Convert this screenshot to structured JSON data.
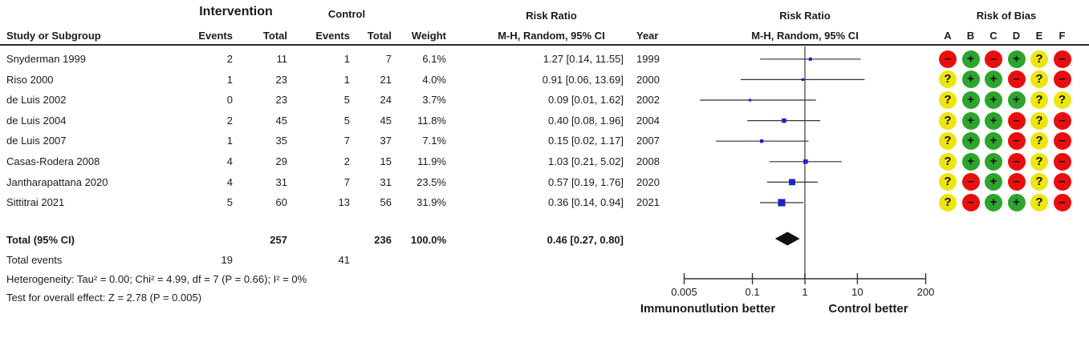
{
  "header": {
    "group_intervention": "Intervention",
    "group_control": "Control",
    "col_study": "Study or Subgroup",
    "col_events": "Events",
    "col_total": "Total",
    "col_weight": "Weight",
    "rr_title": "Risk Ratio",
    "rr_subtitle": "M-H, Random, 95% CI",
    "col_year": "Year",
    "plot_title": "Risk Ratio",
    "plot_subtitle": "M-H, Random, 95% CI",
    "rob_title": "Risk of Bias",
    "rob_letters": [
      "A",
      "B",
      "C",
      "D",
      "E",
      "F"
    ]
  },
  "studies": [
    {
      "name": "Snyderman 1999",
      "events1": "2",
      "total1": "11",
      "events2": "1",
      "total2": "7",
      "weight": 6.1,
      "weight_text": "6.1%",
      "rr": 1.27,
      "lo": 0.14,
      "hi": 11.55,
      "ci_text": "1.27 [0.14, 11.55]",
      "year": "1999",
      "rob": [
        "-",
        "+",
        "-",
        "+",
        "?",
        "-"
      ]
    },
    {
      "name": "Riso 2000",
      "events1": "1",
      "total1": "23",
      "events2": "1",
      "total2": "21",
      "weight": 4.0,
      "weight_text": "4.0%",
      "rr": 0.91,
      "lo": 0.06,
      "hi": 13.69,
      "ci_text": "0.91 [0.06, 13.69]",
      "year": "2000",
      "rob": [
        "?",
        "+",
        "+",
        "-",
        "?",
        "-"
      ]
    },
    {
      "name": "de Luis 2002",
      "events1": "0",
      "total1": "23",
      "events2": "5",
      "total2": "24",
      "weight": 3.7,
      "weight_text": "3.7%",
      "rr": 0.09,
      "lo": 0.01,
      "hi": 1.62,
      "ci_text": "0.09 [0.01, 1.62]",
      "year": "2002",
      "rob": [
        "?",
        "+",
        "+",
        "+",
        "?",
        "?"
      ]
    },
    {
      "name": "de Luis 2004",
      "events1": "2",
      "total1": "45",
      "events2": "5",
      "total2": "45",
      "weight": 11.8,
      "weight_text": "11.8%",
      "rr": 0.4,
      "lo": 0.08,
      "hi": 1.96,
      "ci_text": "0.40 [0.08, 1.96]",
      "year": "2004",
      "rob": [
        "?",
        "+",
        "+",
        "-",
        "?",
        "-"
      ]
    },
    {
      "name": "de Luis 2007",
      "events1": "1",
      "total1": "35",
      "events2": "7",
      "total2": "37",
      "weight": 7.1,
      "weight_text": "7.1%",
      "rr": 0.15,
      "lo": 0.02,
      "hi": 1.17,
      "ci_text": "0.15 [0.02, 1.17]",
      "year": "2007",
      "rob": [
        "?",
        "+",
        "+",
        "-",
        "?",
        "-"
      ]
    },
    {
      "name": "Casas-Rodera 2008",
      "events1": "4",
      "total1": "29",
      "events2": "2",
      "total2": "15",
      "weight": 11.9,
      "weight_text": "11.9%",
      "rr": 1.03,
      "lo": 0.21,
      "hi": 5.02,
      "ci_text": "1.03 [0.21, 5.02]",
      "year": "2008",
      "rob": [
        "?",
        "+",
        "+",
        "-",
        "?",
        "-"
      ]
    },
    {
      "name": "Jantharapattana 2020",
      "events1": "4",
      "total1": "31",
      "events2": "7",
      "total2": "31",
      "weight": 23.5,
      "weight_text": "23.5%",
      "rr": 0.57,
      "lo": 0.19,
      "hi": 1.76,
      "ci_text": "0.57 [0.19, 1.76]",
      "year": "2020",
      "rob": [
        "?",
        "-",
        "+",
        "-",
        "?",
        "-"
      ]
    },
    {
      "name": "Sittitrai 2021",
      "events1": "5",
      "total1": "60",
      "events2": "13",
      "total2": "56",
      "weight": 31.9,
      "weight_text": "31.9%",
      "rr": 0.36,
      "lo": 0.14,
      "hi": 0.94,
      "ci_text": "0.36 [0.14, 0.94]",
      "year": "2021",
      "rob": [
        "?",
        "-",
        "+",
        "+",
        "?",
        "-"
      ]
    }
  ],
  "total": {
    "label": "Total (95% CI)",
    "total1": "257",
    "total2": "236",
    "weight_text": "100.0%",
    "ci_text": "0.46 [0.27, 0.80]",
    "rr": 0.46,
    "lo": 0.27,
    "hi": 0.8
  },
  "total_events": {
    "label": "Total events",
    "events1": "19",
    "events2": "41"
  },
  "heterogeneity": "Heterogeneity: Tau² = 0.00; Chi² = 4.99, df = 7 (P = 0.66); I² = 0%",
  "overall_effect": "Test for overall effect: Z = 2.78 (P = 0.005)",
  "axis": {
    "scale": "log",
    "ticks": [
      "0.005",
      "0.1",
      "1",
      "10",
      "200"
    ],
    "tick_values": [
      0.005,
      0.1,
      1,
      10,
      200
    ],
    "null_value": 1,
    "left_label": "Immunonutlution better",
    "right_label": "Control better"
  },
  "colors": {
    "square_blue": "#2121C8",
    "diamond_black": "#111111",
    "line_black": "#333333",
    "rob_plus_green": "#2DA42D",
    "rob_minus_red": "#E90E0E",
    "rob_question_yellow": "#EDE50E",
    "text": "#1b1b1b"
  },
  "chart_data": {
    "type": "forest",
    "effect_measure": "Risk Ratio (M-H, Random, 95% CI)",
    "x_axis": {
      "scale": "log",
      "ticks": [
        0.005,
        0.1,
        1,
        10,
        200
      ],
      "null_line": 1,
      "left_label": "Immunonutlution better",
      "right_label": "Control better"
    },
    "studies": [
      {
        "study": "Snyderman 1999",
        "year": 1999,
        "rr": 1.27,
        "ci": [
          0.14,
          11.55
        ],
        "weight_pct": 6.1,
        "int_events": 2,
        "int_total": 11,
        "ctl_events": 1,
        "ctl_total": 7,
        "risk_of_bias": [
          "-",
          "+",
          "-",
          "+",
          "?",
          "-"
        ]
      },
      {
        "study": "Riso 2000",
        "year": 2000,
        "rr": 0.91,
        "ci": [
          0.06,
          13.69
        ],
        "weight_pct": 4.0,
        "int_events": 1,
        "int_total": 23,
        "ctl_events": 1,
        "ctl_total": 21,
        "risk_of_bias": [
          "?",
          "+",
          "+",
          "-",
          "?",
          "-"
        ]
      },
      {
        "study": "de Luis 2002",
        "year": 2002,
        "rr": 0.09,
        "ci": [
          0.01,
          1.62
        ],
        "weight_pct": 3.7,
        "int_events": 0,
        "int_total": 23,
        "ctl_events": 5,
        "ctl_total": 24,
        "risk_of_bias": [
          "?",
          "+",
          "+",
          "+",
          "?",
          "?"
        ]
      },
      {
        "study": "de Luis 2004",
        "year": 2004,
        "rr": 0.4,
        "ci": [
          0.08,
          1.96
        ],
        "weight_pct": 11.8,
        "int_events": 2,
        "int_total": 45,
        "ctl_events": 5,
        "ctl_total": 45,
        "risk_of_bias": [
          "?",
          "+",
          "+",
          "-",
          "?",
          "-"
        ]
      },
      {
        "study": "de Luis 2007",
        "year": 2007,
        "rr": 0.15,
        "ci": [
          0.02,
          1.17
        ],
        "weight_pct": 7.1,
        "int_events": 1,
        "int_total": 35,
        "ctl_events": 7,
        "ctl_total": 37,
        "risk_of_bias": [
          "?",
          "+",
          "+",
          "-",
          "?",
          "-"
        ]
      },
      {
        "study": "Casas-Rodera 2008",
        "year": 2008,
        "rr": 1.03,
        "ci": [
          0.21,
          5.02
        ],
        "weight_pct": 11.9,
        "int_events": 4,
        "int_total": 29,
        "ctl_events": 2,
        "ctl_total": 15,
        "risk_of_bias": [
          "?",
          "+",
          "+",
          "-",
          "?",
          "-"
        ]
      },
      {
        "study": "Jantharapattana 2020",
        "year": 2020,
        "rr": 0.57,
        "ci": [
          0.19,
          1.76
        ],
        "weight_pct": 23.5,
        "int_events": 4,
        "int_total": 31,
        "ctl_events": 7,
        "ctl_total": 31,
        "risk_of_bias": [
          "?",
          "-",
          "+",
          "-",
          "?",
          "-"
        ]
      },
      {
        "study": "Sittitrai 2021",
        "year": 2021,
        "rr": 0.36,
        "ci": [
          0.14,
          0.94
        ],
        "weight_pct": 31.9,
        "int_events": 5,
        "int_total": 60,
        "ctl_events": 13,
        "ctl_total": 56,
        "risk_of_bias": [
          "?",
          "-",
          "+",
          "+",
          "?",
          "-"
        ]
      }
    ],
    "total": {
      "rr": 0.46,
      "ci": [
        0.27,
        0.8
      ],
      "weight_pct": 100.0,
      "int_total": 257,
      "ctl_total": 236,
      "int_events": 19,
      "ctl_events": 41
    },
    "heterogeneity": {
      "tau2": 0.0,
      "chi2": 4.99,
      "df": 7,
      "p": 0.66,
      "i2_pct": 0
    },
    "overall_effect": {
      "z": 2.78,
      "p": 0.005
    }
  }
}
